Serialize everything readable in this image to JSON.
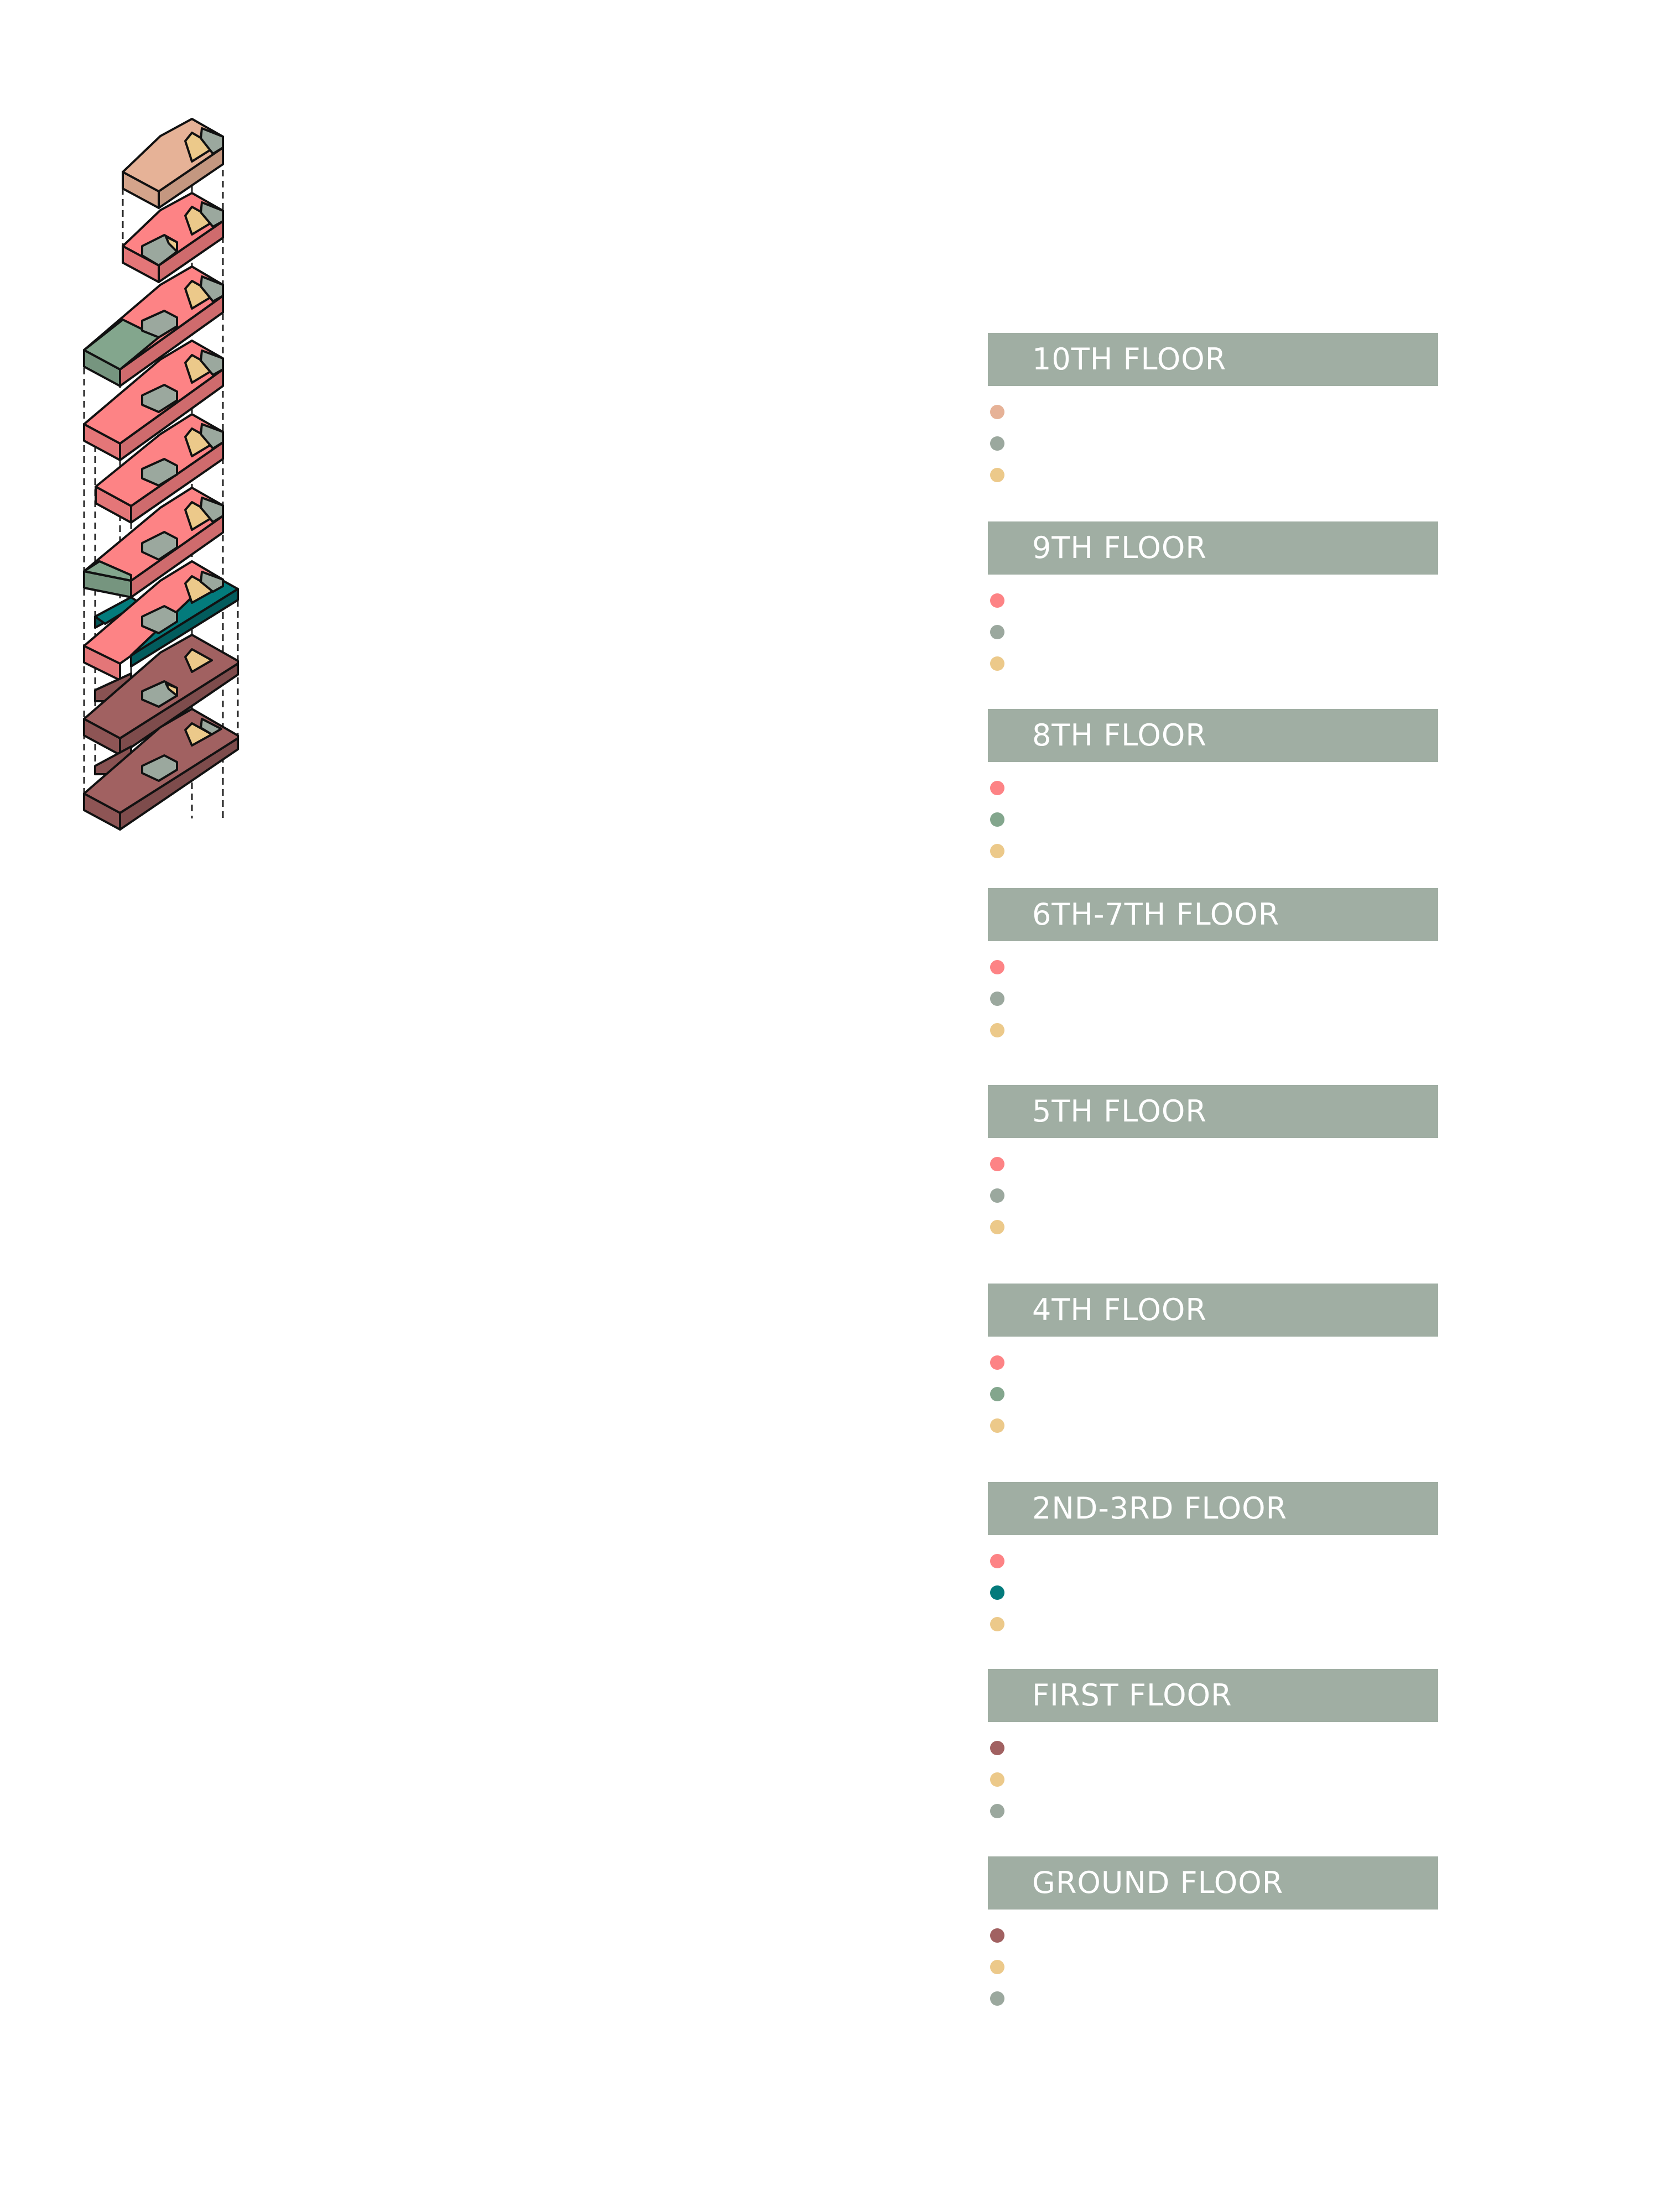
{
  "palette": {
    "peach": "#e6b297",
    "coral": "#fd8385",
    "grey": "#9ba89e",
    "sand": "#ecc98a",
    "sage": "#83a68d",
    "teal": "#037b7c",
    "maroon": "#a16161",
    "header_bg": "#a0aea3"
  },
  "legend": [
    {
      "title": "10TH FLOOR",
      "colors": [
        "#e6b297",
        "#9ba89e",
        "#ecc98a"
      ]
    },
    {
      "title": "9TH FLOOR",
      "colors": [
        "#fd8385",
        "#9ba89e",
        "#ecc98a"
      ]
    },
    {
      "title": "8TH FLOOR",
      "colors": [
        "#fd8385",
        "#83a68d",
        "#ecc98a"
      ]
    },
    {
      "title": "6TH-7TH FLOOR",
      "colors": [
        "#fd8385",
        "#9ba89e",
        "#ecc98a"
      ]
    },
    {
      "title": "5TH FLOOR",
      "colors": [
        "#fd8385",
        "#9ba89e",
        "#ecc98a"
      ]
    },
    {
      "title": "4TH FLOOR",
      "colors": [
        "#fd8385",
        "#83a68d",
        "#ecc98a"
      ]
    },
    {
      "title": "2ND-3RD FLOOR",
      "colors": [
        "#fd8385",
        "#037b7c",
        "#ecc98a"
      ]
    },
    {
      "title": " FIRST FLOOR",
      "colors": [
        "#a16161",
        "#ecc98a",
        "#9ba89e"
      ]
    },
    {
      "title": "GROUND FLOOR",
      "colors": [
        "#a16161",
        "#ecc98a",
        "#9ba89e"
      ]
    }
  ]
}
